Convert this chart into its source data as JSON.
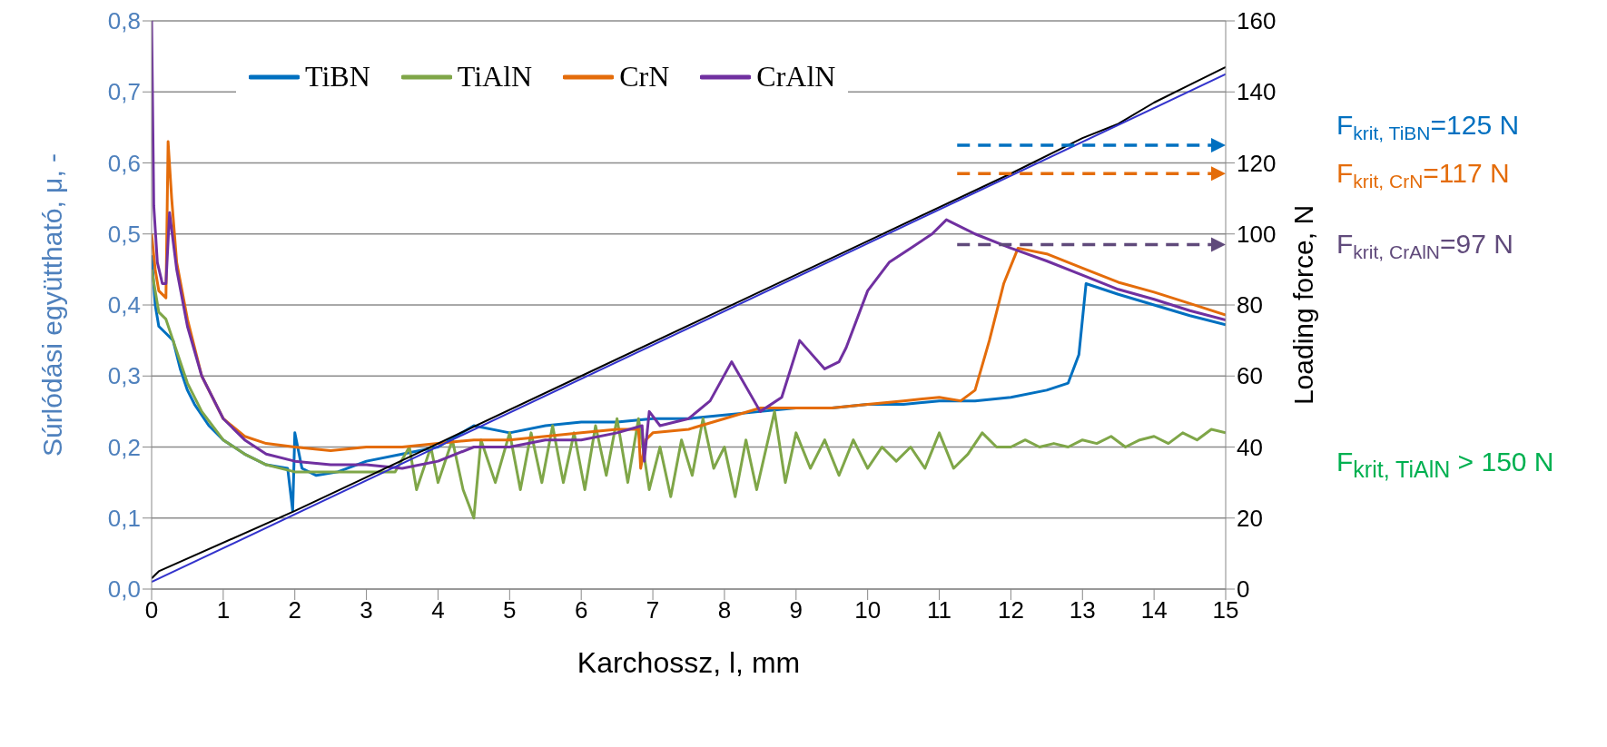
{
  "chart_data": {
    "type": "line",
    "xlabel": "Karchossz, l, mm",
    "ylabel": "Súrlódási együttható, μ, -",
    "y2label": "Loading force, N",
    "xlim": [
      0,
      15
    ],
    "xticks": [
      0,
      1,
      2,
      3,
      4,
      5,
      6,
      7,
      8,
      9,
      10,
      11,
      12,
      13,
      14,
      15
    ],
    "ylim": [
      0,
      0.8
    ],
    "yticks": [
      {
        "value": 0,
        "label": "0,0"
      },
      {
        "value": 0.1,
        "label": "0,1"
      },
      {
        "value": 0.2,
        "label": "0,2"
      },
      {
        "value": 0.3,
        "label": "0,3"
      },
      {
        "value": 0.4,
        "label": "0,4"
      },
      {
        "value": 0.5,
        "label": "0,5"
      },
      {
        "value": 0.6,
        "label": "0,6"
      },
      {
        "value": 0.7,
        "label": "0,7"
      },
      {
        "value": 0.8,
        "label": "0,8"
      }
    ],
    "y2lim": [
      0,
      160
    ],
    "y2ticks": [
      0,
      20,
      40,
      60,
      80,
      100,
      120,
      140,
      160
    ],
    "grid": "y",
    "legend": "top",
    "series": [
      {
        "name": "TiBN",
        "color": "#0070c0",
        "x": [
          0,
          0.05,
          0.1,
          0.2,
          0.3,
          0.4,
          0.5,
          0.6,
          0.8,
          1,
          1.3,
          1.6,
          1.9,
          1.97,
          2,
          2.1,
          2.3,
          2.6,
          3,
          3.5,
          4,
          4.5,
          5,
          5.5,
          6,
          6.5,
          7,
          7.5,
          8,
          8.5,
          9,
          9.5,
          10,
          10.5,
          11,
          11.5,
          12,
          12.5,
          12.8,
          12.95,
          13.05,
          13.5,
          14,
          14.5,
          15
        ],
        "values": [
          0.47,
          0.4,
          0.37,
          0.36,
          0.35,
          0.31,
          0.28,
          0.26,
          0.23,
          0.21,
          0.19,
          0.175,
          0.17,
          0.11,
          0.22,
          0.17,
          0.16,
          0.165,
          0.18,
          0.19,
          0.2,
          0.23,
          0.22,
          0.23,
          0.235,
          0.235,
          0.24,
          0.24,
          0.245,
          0.25,
          0.255,
          0.255,
          0.26,
          0.26,
          0.265,
          0.265,
          0.27,
          0.28,
          0.29,
          0.33,
          0.43,
          0.415,
          0.4,
          0.385,
          0.372
        ]
      },
      {
        "name": "TiAlN",
        "color": "#7fa648",
        "x": [
          0,
          0.1,
          0.2,
          0.3,
          0.5,
          0.7,
          1,
          1.3,
          1.6,
          2,
          2.5,
          3,
          3.4,
          3.6,
          3.7,
          3.9,
          4,
          4.2,
          4.35,
          4.5,
          4.6,
          4.8,
          5,
          5.15,
          5.3,
          5.45,
          5.6,
          5.75,
          5.9,
          6.05,
          6.2,
          6.35,
          6.5,
          6.65,
          6.8,
          6.95,
          7.1,
          7.25,
          7.4,
          7.55,
          7.7,
          7.85,
          8,
          8.15,
          8.3,
          8.45,
          8.7,
          8.85,
          9,
          9.2,
          9.4,
          9.6,
          9.8,
          10,
          10.2,
          10.4,
          10.6,
          10.8,
          11,
          11.2,
          11.4,
          11.6,
          11.8,
          12,
          12.2,
          12.4,
          12.6,
          12.8,
          13,
          13.2,
          13.4,
          13.6,
          13.8,
          14,
          14.2,
          14.4,
          14.6,
          14.8,
          15
        ],
        "values": [
          0.45,
          0.39,
          0.38,
          0.35,
          0.29,
          0.25,
          0.21,
          0.19,
          0.175,
          0.165,
          0.165,
          0.165,
          0.165,
          0.2,
          0.14,
          0.2,
          0.15,
          0.21,
          0.14,
          0.1,
          0.21,
          0.15,
          0.22,
          0.14,
          0.22,
          0.15,
          0.23,
          0.15,
          0.22,
          0.14,
          0.23,
          0.16,
          0.24,
          0.15,
          0.24,
          0.14,
          0.2,
          0.13,
          0.21,
          0.16,
          0.24,
          0.17,
          0.2,
          0.13,
          0.21,
          0.14,
          0.25,
          0.15,
          0.22,
          0.17,
          0.21,
          0.16,
          0.21,
          0.17,
          0.2,
          0.18,
          0.2,
          0.17,
          0.22,
          0.17,
          0.19,
          0.22,
          0.2,
          0.2,
          0.21,
          0.2,
          0.205,
          0.2,
          0.21,
          0.205,
          0.215,
          0.2,
          0.21,
          0.215,
          0.205,
          0.22,
          0.21,
          0.225,
          0.22
        ]
      },
      {
        "name": "CrN",
        "color": "#e46c0a",
        "x": [
          0,
          0.05,
          0.1,
          0.2,
          0.23,
          0.28,
          0.35,
          0.5,
          0.7,
          1,
          1.3,
          1.6,
          2,
          2.5,
          3,
          3.5,
          4,
          4.5,
          5,
          5.5,
          6,
          6.5,
          6.8,
          6.83,
          6.9,
          7,
          7.5,
          8,
          8.5,
          9,
          9.5,
          10,
          10.5,
          11,
          11.3,
          11.5,
          11.7,
          11.9,
          12.1,
          12.5,
          13,
          13.5,
          14,
          14.5,
          15
        ],
        "values": [
          0.5,
          0.45,
          0.42,
          0.41,
          0.63,
          0.55,
          0.46,
          0.38,
          0.3,
          0.24,
          0.215,
          0.205,
          0.2,
          0.195,
          0.2,
          0.2,
          0.205,
          0.21,
          0.21,
          0.215,
          0.22,
          0.225,
          0.225,
          0.17,
          0.21,
          0.22,
          0.225,
          0.24,
          0.255,
          0.255,
          0.255,
          0.26,
          0.265,
          0.27,
          0.265,
          0.28,
          0.35,
          0.43,
          0.48,
          0.472,
          0.452,
          0.432,
          0.418,
          0.402,
          0.386
        ]
      },
      {
        "name": "CrAlN",
        "color": "#7030a0",
        "x": [
          0,
          0.03,
          0.08,
          0.15,
          0.2,
          0.25,
          0.35,
          0.5,
          0.7,
          1,
          1.3,
          1.6,
          2,
          2.5,
          3,
          3.5,
          4,
          4.5,
          5,
          5.5,
          6,
          6.5,
          6.85,
          6.88,
          6.95,
          7.1,
          7.5,
          7.8,
          8.1,
          8.5,
          8.8,
          9.05,
          9.4,
          9.6,
          9.7,
          10,
          10.3,
          10.6,
          10.9,
          11.1,
          11.5,
          12,
          12.5,
          13,
          13.5,
          14,
          14.5,
          15
        ],
        "values": [
          0.8,
          0.54,
          0.46,
          0.43,
          0.43,
          0.53,
          0.45,
          0.37,
          0.3,
          0.24,
          0.21,
          0.19,
          0.18,
          0.175,
          0.175,
          0.17,
          0.18,
          0.2,
          0.2,
          0.21,
          0.21,
          0.22,
          0.23,
          0.18,
          0.25,
          0.23,
          0.24,
          0.265,
          0.32,
          0.25,
          0.27,
          0.35,
          0.31,
          0.32,
          0.34,
          0.42,
          0.46,
          0.48,
          0.5,
          0.52,
          0.5,
          0.48,
          0.462,
          0.442,
          0.422,
          0.408,
          0.392,
          0.379
        ]
      },
      {
        "color": "#000000",
        "axis": "y2",
        "x": [
          0,
          0.1,
          2,
          4,
          6,
          8,
          10,
          12,
          13,
          13.5,
          14,
          14.5,
          15
        ],
        "values": [
          3,
          5,
          22,
          41,
          60,
          79,
          98,
          117,
          127,
          131,
          137,
          142,
          147
        ]
      },
      {
        "color": "#3333cc",
        "axis": "y2",
        "x": [
          0,
          15
        ],
        "values": [
          2,
          145
        ]
      }
    ],
    "ref_lines": [
      {
        "axis": "y2",
        "value": 125,
        "label": "F$_{krit, TiBN}$=125 N",
        "color": "#0070c0",
        "line_style": "dashed"
      },
      {
        "axis": "y2",
        "value": 117,
        "label": "F$_{krit, CrN}$=117 N",
        "color": "#e46c0a",
        "line_style": "dashed"
      },
      {
        "axis": "y2",
        "value": 97,
        "label": "F$_{krit, CrAlN}$=97 N",
        "color": "#604a7b",
        "line_style": "dashed"
      }
    ],
    "annotations": [
      "F$_{krit, TiAlN}$ > 150 N"
    ]
  }
}
